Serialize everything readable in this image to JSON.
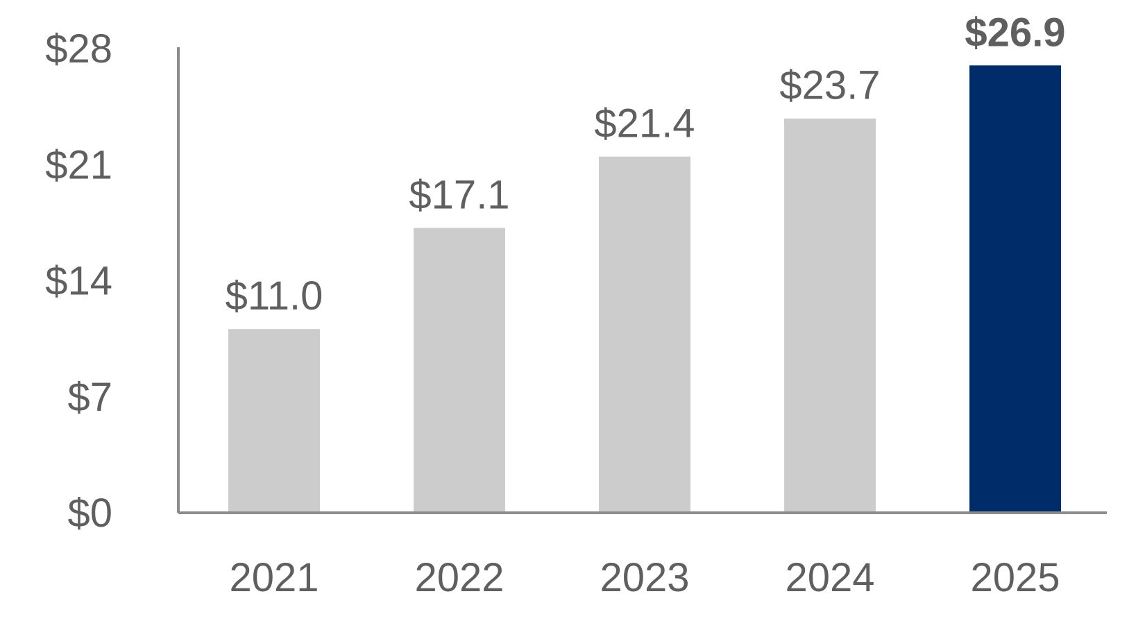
{
  "chart_data": {
    "type": "bar",
    "title": "",
    "xlabel": "",
    "ylabel": "",
    "categories": [
      "2021",
      "2022",
      "2023",
      "2024",
      "2025"
    ],
    "values": [
      11.0,
      17.1,
      21.4,
      23.7,
      26.9
    ],
    "data_labels": [
      "$11.0",
      "$17.1",
      "$21.4",
      "$23.7",
      "$26.9"
    ],
    "highlight_index": 4,
    "ylim": [
      0,
      28
    ],
    "y_ticks": [
      0,
      7,
      14,
      21,
      28
    ],
    "y_tick_labels": [
      "$0",
      "$7",
      "$14",
      "$21",
      "$28"
    ],
    "grid": false,
    "legend": "none",
    "colors": {
      "bar": "#cccccc",
      "highlight": "#002d6a",
      "axis": "#8c8c8c",
      "text": "#5f5f5f"
    }
  }
}
